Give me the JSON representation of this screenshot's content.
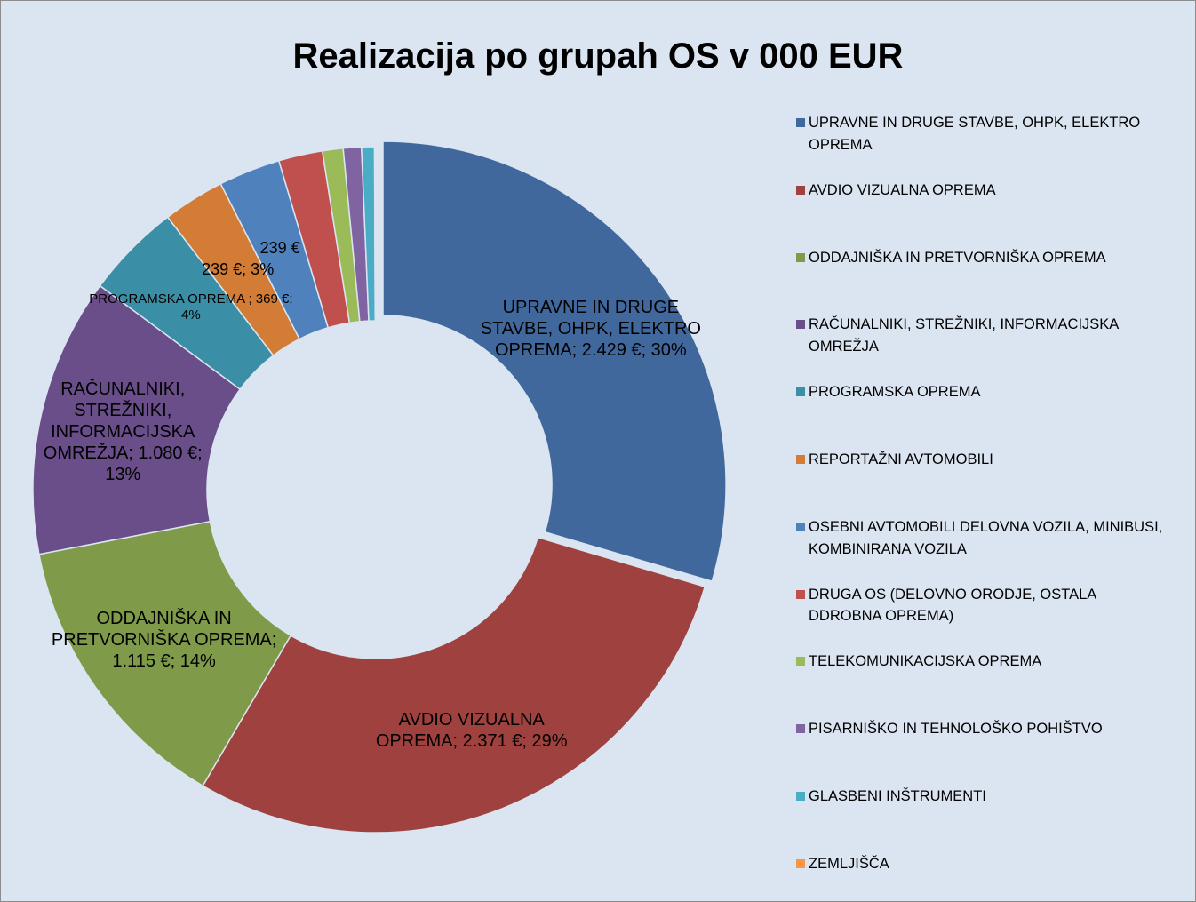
{
  "chart_data": {
    "type": "donut",
    "title": "Realizacija po grupah OS v 000 EUR",
    "categories": [
      "UPRAVNE IN DRUGE STAVBE, OHPK, ELEKTRO OPREMA",
      "AVDIO VIZUALNA OPREMA",
      " ODDAJNIŠKA IN PRETVORNIŠKA OPREMA",
      "RAČUNALNIKI, STREŽNIKI, INFORMACIJSKA OMREŽJA",
      "PROGRAMSKA OPREMA",
      "REPORTAŽNI AVTOMOBILI",
      "OSEBNI AVTOMOBILI  DELOVNA VOZILA, MINIBUSI, KOMBINIRANA VOZILA",
      "DRUGA OS (DELOVNO ORODJE,  OSTALA DDROBNA OPREMA)",
      "TELEKOMUNIKACIJSKA OPREMA",
      "PISARNIŠKO IN TEHNOLOŠKO POHIŠTVO",
      "GLASBENI INŠTRUMENTI",
      "ZEMLJIŠČA"
    ],
    "values": [
      2429,
      2371,
      1115,
      1080,
      369,
      239,
      239,
      170,
      80,
      70,
      50,
      5
    ],
    "value_labels": [
      "UPRAVNE IN DRUGE STAVBE, OHPK, ELEKTRO OPREMA; 2.429 €; 30%",
      "AVDIO VIZUALNA OPREMA; 2.371 €; 29%",
      "ODDAJNIŠKA IN PRETVORNIŠKA OPREMA; 1.115 €; 14%",
      "RAČUNALNIKI, STREŽNIKI, INFORMACIJSKA OMREŽJA; 1.080 €; 13%",
      "PROGRAMSKA OPREMA  ; 369 €; 4%",
      "239 €; 3%",
      "239 €",
      null,
      null,
      null,
      null,
      null
    ],
    "colors": [
      "#41689c",
      "#9e413f",
      "#7f9a48",
      "#6a4e8a",
      "#3a8ea6",
      "#d27c35",
      "#4f81bd",
      "#c0504d",
      "#9bbb59",
      "#8064a2",
      "#4bacc6",
      "#f79646"
    ],
    "legend": "right"
  }
}
